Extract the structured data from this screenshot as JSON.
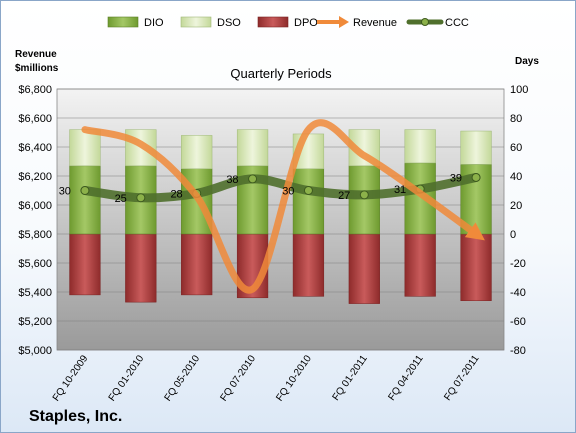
{
  "chart_data": {
    "type": "bar",
    "title": "Quarterly Periods",
    "company": "Staples, Inc.",
    "left_axis_label": [
      "Revenue",
      "$millions"
    ],
    "right_axis_label": "Days",
    "categories": [
      "FQ 10-2009",
      "FQ 01-2010",
      "FQ 05-2010",
      "FQ 07-2010",
      "FQ 10-2010",
      "FQ 01-2011",
      "FQ 04-2011",
      "FQ 07-2011"
    ],
    "left_ylim": [
      5000,
      6800
    ],
    "left_ticks": [
      "$5,000",
      "$5,200",
      "$5,400",
      "$5,600",
      "$5,800",
      "$6,000",
      "$6,200",
      "$6,400",
      "$6,600",
      "$6,800"
    ],
    "right_ylim": [
      -80,
      100
    ],
    "right_ticks": [
      "-80",
      "-60",
      "-40",
      "-20",
      "0",
      "20",
      "40",
      "60",
      "80",
      "100"
    ],
    "legend": [
      "DIO",
      "DSO",
      "DPO",
      "Revenue",
      "CCC"
    ],
    "legend_position": "top",
    "series": [
      {
        "name": "DIO",
        "axis": "right",
        "kind": "stacked-bar",
        "color": "#8cb14a",
        "values": [
          47,
          47,
          45,
          47,
          45,
          47,
          49,
          48
        ]
      },
      {
        "name": "DSO",
        "axis": "right",
        "kind": "stacked-bar",
        "color": "#d5e5b0",
        "values": [
          25,
          25,
          23,
          25,
          24,
          25,
          23,
          23
        ]
      },
      {
        "name": "DPO",
        "axis": "right",
        "kind": "bar-negative",
        "color": "#b03a3a",
        "values": [
          -42,
          -47,
          -42,
          -44,
          -43,
          -48,
          -43,
          -46
        ]
      },
      {
        "name": "Revenue",
        "axis": "left",
        "kind": "line",
        "color": "#f08a3a",
        "values": [
          6520,
          6420,
          6060,
          5420,
          6520,
          6340,
          6080,
          5800
        ]
      },
      {
        "name": "CCC",
        "axis": "right",
        "kind": "line",
        "color": "#4f6f2c",
        "values": [
          30,
          25,
          28,
          38,
          30,
          27,
          31,
          39
        ]
      }
    ],
    "data_labels": [
      "30",
      "25",
      "28",
      "38",
      "30",
      "27",
      "31",
      "39"
    ]
  }
}
